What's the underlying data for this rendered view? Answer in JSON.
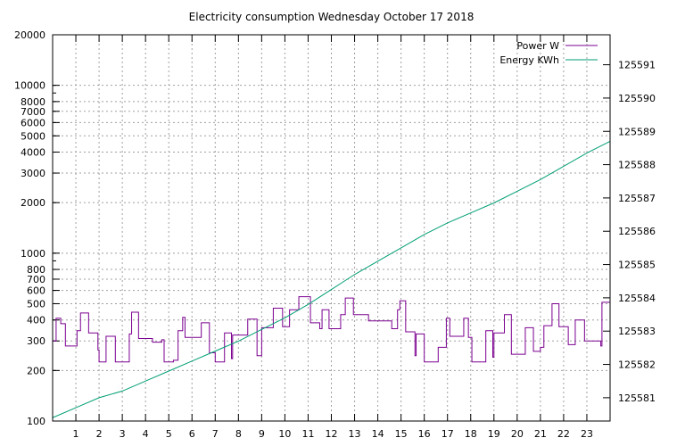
{
  "chart_data": {
    "type": "line",
    "title": "Electricity consumption Wednesday October 17 2018",
    "xlabel": "",
    "ylabel": "",
    "xlim": [
      0,
      24
    ],
    "x_ticks": [
      "1",
      "2",
      "3",
      "4",
      "5",
      "6",
      "7",
      "8",
      "9",
      "10",
      "11",
      "12",
      "13",
      "14",
      "15",
      "16",
      "17",
      "18",
      "19",
      "20",
      "21",
      "22",
      "23"
    ],
    "y_scale": "log",
    "ylim": [
      100,
      20000
    ],
    "y_ticks": [
      "100",
      "200",
      "300",
      "400",
      "500",
      "600",
      "700",
      "800",
      "1000",
      "2000",
      "3000",
      "4000",
      "5000",
      "6000",
      "7000",
      "8000",
      "10000",
      "20000"
    ],
    "y2lim": [
      125580.3,
      125591.9
    ],
    "y2_ticks": [
      "125581",
      "125582",
      "125583",
      "125584",
      "125585",
      "125586",
      "125587",
      "125588",
      "125589",
      "125590",
      "125591"
    ],
    "grid": true,
    "legend_position": "top-right",
    "series": [
      {
        "name": "Power W",
        "axis": "left",
        "color": "#7b0090",
        "step": true,
        "points": [
          [
            0.0,
            300
          ],
          [
            0.15,
            410
          ],
          [
            0.35,
            380
          ],
          [
            0.55,
            280
          ],
          [
            1.05,
            345
          ],
          [
            1.2,
            440
          ],
          [
            1.55,
            335
          ],
          [
            1.95,
            265
          ],
          [
            2.0,
            225
          ],
          [
            2.3,
            320
          ],
          [
            2.7,
            225
          ],
          [
            3.3,
            330
          ],
          [
            3.4,
            445
          ],
          [
            3.7,
            310
          ],
          [
            4.3,
            295
          ],
          [
            4.7,
            305
          ],
          [
            4.8,
            225
          ],
          [
            5.2,
            230
          ],
          [
            5.4,
            345
          ],
          [
            5.6,
            415
          ],
          [
            5.7,
            315
          ],
          [
            6.4,
            385
          ],
          [
            6.75,
            255
          ],
          [
            7.0,
            225
          ],
          [
            7.4,
            335
          ],
          [
            7.7,
            235
          ],
          [
            7.75,
            325
          ],
          [
            8.4,
            405
          ],
          [
            8.8,
            245
          ],
          [
            9.0,
            360
          ],
          [
            9.5,
            470
          ],
          [
            9.9,
            365
          ],
          [
            10.2,
            460
          ],
          [
            10.6,
            550
          ],
          [
            11.1,
            385
          ],
          [
            11.5,
            355
          ],
          [
            11.6,
            460
          ],
          [
            11.9,
            355
          ],
          [
            12.4,
            430
          ],
          [
            12.6,
            540
          ],
          [
            12.95,
            430
          ],
          [
            13.6,
            395
          ],
          [
            14.6,
            355
          ],
          [
            14.85,
            460
          ],
          [
            14.95,
            520
          ],
          [
            15.2,
            340
          ],
          [
            15.6,
            245
          ],
          [
            15.65,
            330
          ],
          [
            16.0,
            225
          ],
          [
            16.6,
            275
          ],
          [
            16.95,
            410
          ],
          [
            17.1,
            320
          ],
          [
            17.7,
            410
          ],
          [
            17.9,
            315
          ],
          [
            18.05,
            225
          ],
          [
            18.65,
            345
          ],
          [
            18.95,
            240
          ],
          [
            19.0,
            335
          ],
          [
            19.45,
            430
          ],
          [
            19.75,
            250
          ],
          [
            20.35,
            360
          ],
          [
            20.7,
            260
          ],
          [
            21.0,
            275
          ],
          [
            21.15,
            370
          ],
          [
            21.5,
            500
          ],
          [
            21.8,
            365
          ],
          [
            22.2,
            285
          ],
          [
            22.5,
            400
          ],
          [
            22.9,
            300
          ],
          [
            23.6,
            280
          ],
          [
            23.65,
            510
          ],
          [
            24.0,
            510
          ]
        ]
      },
      {
        "name": "Energy KWh",
        "axis": "right",
        "color": "#009e73",
        "step": false,
        "points": [
          [
            0.0,
            125580.4
          ],
          [
            1.0,
            125580.7
          ],
          [
            2.0,
            125581.0
          ],
          [
            3.0,
            125581.2
          ],
          [
            4.0,
            125581.5
          ],
          [
            5.0,
            125581.8
          ],
          [
            6.0,
            125582.1
          ],
          [
            7.0,
            125582.4
          ],
          [
            8.0,
            125582.7
          ],
          [
            9.0,
            125583.05
          ],
          [
            10.0,
            125583.4
          ],
          [
            11.0,
            125583.8
          ],
          [
            12.0,
            125584.25
          ],
          [
            13.0,
            125584.7
          ],
          [
            14.0,
            125585.1
          ],
          [
            15.0,
            125585.5
          ],
          [
            16.0,
            125585.9
          ],
          [
            17.0,
            125586.25
          ],
          [
            18.0,
            125586.55
          ],
          [
            19.0,
            125586.85
          ],
          [
            20.0,
            125587.2
          ],
          [
            21.0,
            125587.55
          ],
          [
            22.0,
            125587.95
          ],
          [
            23.0,
            125588.35
          ],
          [
            24.0,
            125588.7
          ]
        ]
      }
    ]
  }
}
